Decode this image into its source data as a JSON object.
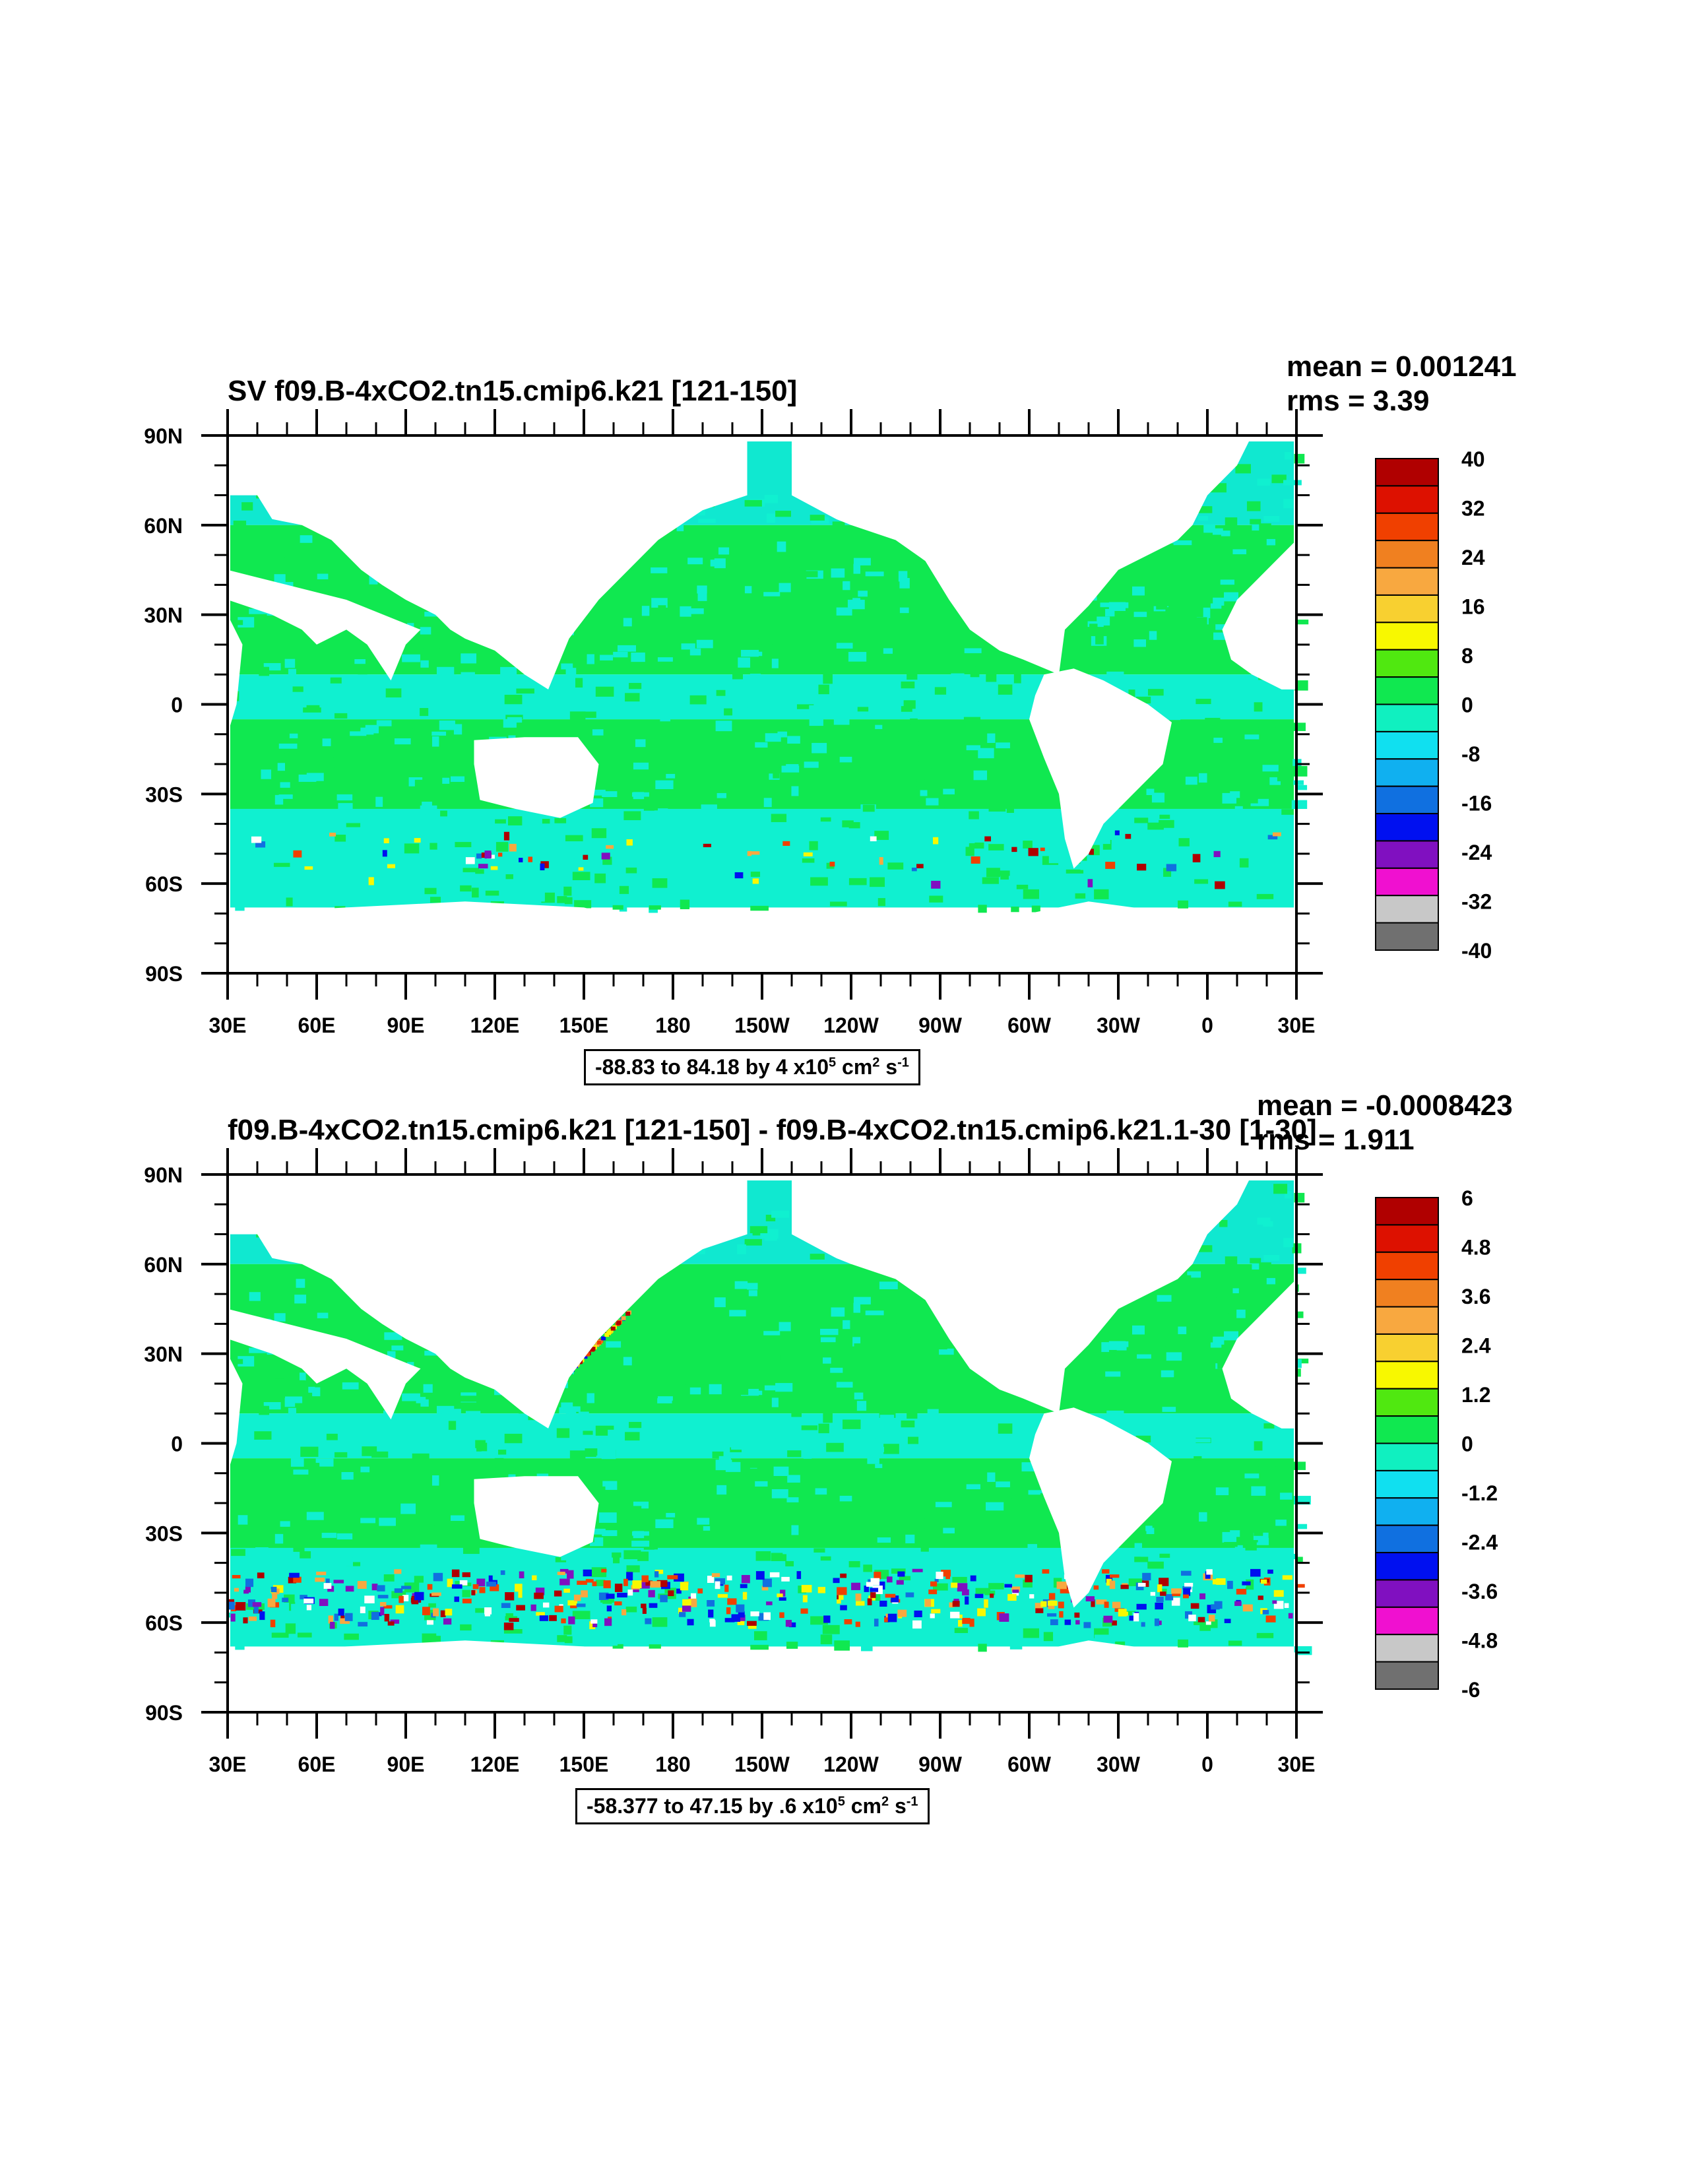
{
  "panels": [
    {
      "title": "SV f09.B-4xCO2.tn15.cmip6.k21 [121-150]",
      "mean": "mean = 0.001241",
      "rms": "rms = 3.39",
      "footer_range": "-88.83 to 84.18 by 4 x10",
      "footer_exp": "5",
      "footer_units": " cm",
      "footer_exp2": "2",
      "footer_units2": " s",
      "footer_exp3": "-1"
    },
    {
      "title": "f09.B-4xCO2.tn15.cmip6.k21 [121-150] - f09.B-4xCO2.tn15.cmip6.k21.1-30 [1-30]",
      "mean": "mean = -0.0008423",
      "rms": "rms = 1.911",
      "footer_range": "-58.377 to 47.15 by .6 x10",
      "footer_exp": "5",
      "footer_units": " cm",
      "footer_exp2": "2",
      "footer_units2": " s",
      "footer_exp3": "-1"
    }
  ],
  "chart_data": [
    {
      "type": "heatmap",
      "title": "SV f09.B-4xCO2.tn15.cmip6.k21 [121-150]",
      "lat_ticks": [
        "90N",
        "60N",
        "30N",
        "0",
        "30S",
        "60S",
        "90S"
      ],
      "lon_ticks": [
        "30E",
        "60E",
        "90E",
        "120E",
        "150E",
        "180",
        "150W",
        "120W",
        "90W",
        "60W",
        "30W",
        "0",
        "30E"
      ],
      "colorbar_labels": [
        "40",
        "32",
        "24",
        "16",
        "8",
        "0",
        "-8",
        "-16",
        "-24",
        "-32",
        "-40"
      ],
      "colorbar_colors": [
        "#b00000",
        "#dd1100",
        "#f04000",
        "#f08020",
        "#f8a840",
        "#f8d030",
        "#f8f800",
        "#50e810",
        "#10e850",
        "#10f0c0",
        "#10e0f0",
        "#10b0f0",
        "#1070e0",
        "#0010f0",
        "#8010c0",
        "#f010d0",
        "#c8c8c8",
        "#707070"
      ],
      "mean": 0.001241,
      "rms": 3.39
    },
    {
      "type": "heatmap",
      "title": "f09.B-4xCO2.tn15.cmip6.k21 [121-150] - f09.B-4xCO2.tn15.cmip6.k21.1-30 [1-30]",
      "lat_ticks": [
        "90N",
        "60N",
        "30N",
        "0",
        "30S",
        "60S",
        "90S"
      ],
      "lon_ticks": [
        "30E",
        "60E",
        "90E",
        "120E",
        "150E",
        "180",
        "150W",
        "120W",
        "90W",
        "60W",
        "30W",
        "0",
        "30E"
      ],
      "colorbar_labels": [
        "6",
        "4.8",
        "3.6",
        "2.4",
        "1.2",
        "0",
        "-1.2",
        "-2.4",
        "-3.6",
        "-4.8",
        "-6"
      ],
      "colorbar_colors": [
        "#b00000",
        "#dd1100",
        "#f04000",
        "#f08020",
        "#f8a840",
        "#f8d030",
        "#f8f800",
        "#50e810",
        "#10e850",
        "#10f0c0",
        "#10e0f0",
        "#10b0f0",
        "#1070e0",
        "#0010f0",
        "#8010c0",
        "#f010d0",
        "#c8c8c8",
        "#707070"
      ],
      "mean": -0.0008423,
      "rms": 1.911
    }
  ]
}
